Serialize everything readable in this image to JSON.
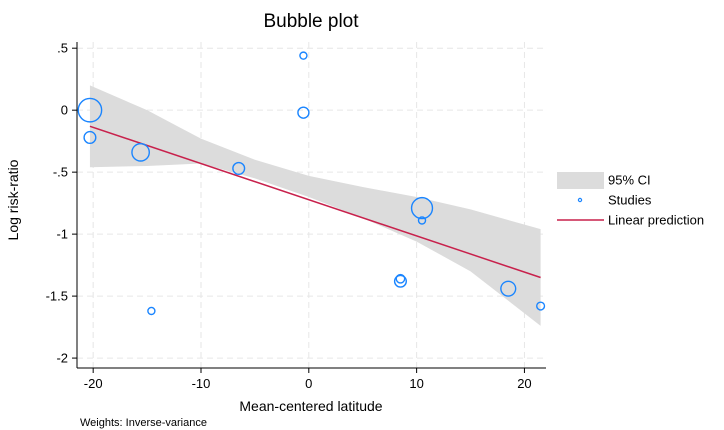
{
  "chart_data": {
    "type": "scatter",
    "title": "Bubble plot",
    "xlabel": "Mean-centered latitude",
    "ylabel": "Log risk-ratio",
    "note": "Weights: Inverse-variance",
    "xlim": [
      -21.5,
      22
    ],
    "ylim": [
      -2.08,
      0.55
    ],
    "xticks": [
      -20,
      -10,
      0,
      10,
      20
    ],
    "xtick_labels": [
      "-20",
      "-10",
      "0",
      "10",
      "20"
    ],
    "yticks": [
      0.5,
      0,
      -0.5,
      -1,
      -1.5,
      -2
    ],
    "ytick_labels": [
      ".5",
      "0",
      "-.5",
      "-1",
      "-1.5",
      "-2"
    ],
    "grid": true,
    "legend_position": "right",
    "legend": [
      {
        "label": "95% CI",
        "kind": "band",
        "color": "#dcdcdc"
      },
      {
        "label": "Studies",
        "kind": "marker",
        "color": "#1a85ff"
      },
      {
        "label": "Linear prediction",
        "kind": "line",
        "color": "#c8214c"
      }
    ],
    "series": [
      {
        "name": "Studies",
        "points": [
          {
            "x": -20.3,
            "y": 0.0,
            "weight": 10
          },
          {
            "x": -20.3,
            "y": -0.22,
            "weight": 2.5
          },
          {
            "x": -15.6,
            "y": -0.34,
            "weight": 5.5
          },
          {
            "x": -14.6,
            "y": -1.62,
            "weight": 0.9
          },
          {
            "x": -6.5,
            "y": -0.47,
            "weight": 2.5
          },
          {
            "x": -0.5,
            "y": 0.44,
            "weight": 0.9
          },
          {
            "x": -0.5,
            "y": -0.02,
            "weight": 2.2
          },
          {
            "x": 8.5,
            "y": -1.36,
            "weight": 1.3
          },
          {
            "x": 8.5,
            "y": -1.38,
            "weight": 2.5
          },
          {
            "x": 10.5,
            "y": -0.79,
            "weight": 8
          },
          {
            "x": 10.5,
            "y": -0.89,
            "weight": 0.9
          },
          {
            "x": 18.5,
            "y": -1.44,
            "weight": 4
          },
          {
            "x": 21.5,
            "y": -1.58,
            "weight": 1.1
          }
        ]
      },
      {
        "name": "Linear prediction",
        "line": [
          {
            "x": -20.3,
            "y": -0.13
          },
          {
            "x": 21.5,
            "y": -1.35
          }
        ]
      }
    ],
    "ci_band": {
      "x": [
        -20.3,
        -15,
        -10,
        -5,
        0,
        5,
        10,
        15,
        21.5
      ],
      "upper": [
        0.2,
        0.0,
        -0.23,
        -0.4,
        -0.53,
        -0.62,
        -0.7,
        -0.8,
        -0.96
      ],
      "lower": [
        -0.46,
        -0.45,
        -0.43,
        -0.55,
        -0.7,
        -0.87,
        -1.06,
        -1.3,
        -1.74
      ]
    }
  }
}
